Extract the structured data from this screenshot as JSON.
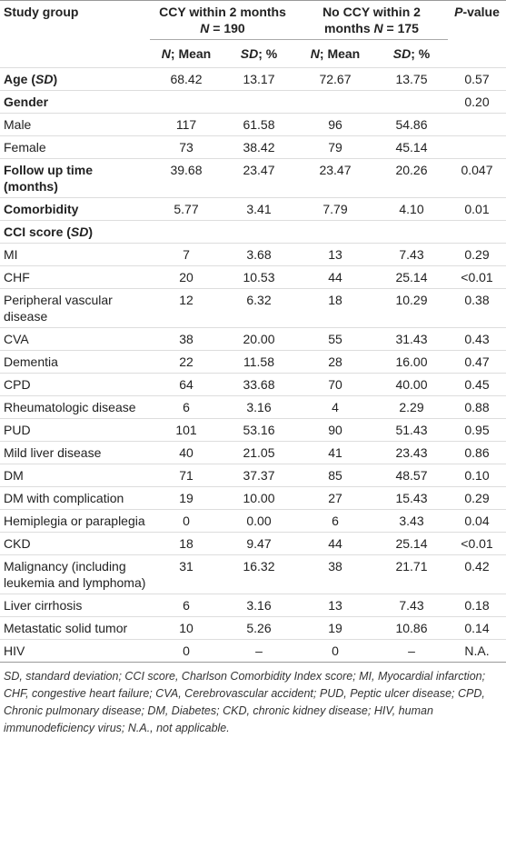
{
  "table": {
    "header": {
      "study_group": "Study group",
      "ccy": [
        "CCY within 2 months ",
        "N",
        " = 190"
      ],
      "no_ccy": [
        "No CCY within 2 months ",
        "N",
        " = 175"
      ],
      "p_value": [
        "P",
        "-value"
      ],
      "sub": [
        [
          "N",
          "; Mean"
        ],
        [
          "SD",
          "; %"
        ],
        [
          "N",
          "; Mean"
        ],
        [
          "SD",
          "; %"
        ]
      ]
    },
    "rows": [
      {
        "label": [
          "Age (",
          "SD",
          ")"
        ],
        "bold": true,
        "cells": [
          "68.42",
          "13.17",
          "72.67",
          "13.75",
          "0.57"
        ]
      },
      {
        "label": "Gender",
        "bold": true,
        "cells": [
          null,
          null,
          null,
          null,
          "0.20"
        ]
      },
      {
        "label": "Male",
        "cells": [
          "117",
          "61.58",
          "96",
          "54.86",
          null
        ]
      },
      {
        "label": "Female",
        "cells": [
          "73",
          "38.42",
          "79",
          "45.14",
          null
        ]
      },
      {
        "label": "Follow up time (months)",
        "bold": true,
        "cells": [
          "39.68",
          "23.47",
          "23.47",
          "20.26",
          "0.047"
        ]
      },
      {
        "label": "Comorbidity",
        "bold": true,
        "cells": [
          "5.77",
          "3.41",
          "7.79",
          "4.10",
          "0.01"
        ]
      },
      {
        "label": [
          "CCI score (",
          "SD",
          ")"
        ],
        "bold": true,
        "cells": [
          null,
          null,
          null,
          null,
          null
        ]
      },
      {
        "label": "MI",
        "cells": [
          "7",
          "3.68",
          "13",
          "7.43",
          "0.29"
        ]
      },
      {
        "label": "CHF",
        "cells": [
          "20",
          "10.53",
          "44",
          "25.14",
          "<0.01"
        ]
      },
      {
        "label": "Peripheral vascular disease",
        "cells": [
          "12",
          "6.32",
          "18",
          "10.29",
          "0.38"
        ]
      },
      {
        "label": "CVA",
        "cells": [
          "38",
          "20.00",
          "55",
          "31.43",
          "0.43"
        ]
      },
      {
        "label": "Dementia",
        "cells": [
          "22",
          "11.58",
          "28",
          "16.00",
          "0.47"
        ]
      },
      {
        "label": "CPD",
        "cells": [
          "64",
          "33.68",
          "70",
          "40.00",
          "0.45"
        ]
      },
      {
        "label": "Rheumatologic disease",
        "cells": [
          "6",
          "3.16",
          "4",
          "2.29",
          "0.88"
        ]
      },
      {
        "label": "PUD",
        "cells": [
          "101",
          "53.16",
          "90",
          "51.43",
          "0.95"
        ]
      },
      {
        "label": "Mild liver disease",
        "cells": [
          "40",
          "21.05",
          "41",
          "23.43",
          "0.86"
        ]
      },
      {
        "label": "DM",
        "cells": [
          "71",
          "37.37",
          "85",
          "48.57",
          "0.10"
        ]
      },
      {
        "label": "DM with complication",
        "cells": [
          "19",
          "10.00",
          "27",
          "15.43",
          "0.29"
        ]
      },
      {
        "label": "Hemiplegia or paraplegia",
        "cells": [
          "0",
          "0.00",
          "6",
          "3.43",
          "0.04"
        ]
      },
      {
        "label": "CKD",
        "cells": [
          "18",
          "9.47",
          "44",
          "25.14",
          "<0.01"
        ]
      },
      {
        "label": "Malignancy (including leukemia and lymphoma)",
        "cells": [
          "31",
          "16.32",
          "38",
          "21.71",
          "0.42"
        ]
      },
      {
        "label": "Liver cirrhosis",
        "cells": [
          "6",
          "3.16",
          "13",
          "7.43",
          "0.18"
        ]
      },
      {
        "label": "Metastatic solid tumor",
        "cells": [
          "10",
          "5.26",
          "19",
          "10.86",
          "0.14"
        ]
      },
      {
        "label": "HIV",
        "cells": [
          "0",
          "–",
          "0",
          "–",
          "N.A."
        ]
      }
    ]
  },
  "footnote": "SD, standard deviation; CCI score, Charlson Comorbidity Index score; MI, Myocardial infarction; CHF, congestive heart failure; CVA, Cerebrovascular accident; PUD, Peptic ulcer disease; CPD, Chronic pulmonary disease; DM, Diabetes; CKD, chronic kidney disease; HIV, human immunodeficiency virus; N.A., not applicable."
}
